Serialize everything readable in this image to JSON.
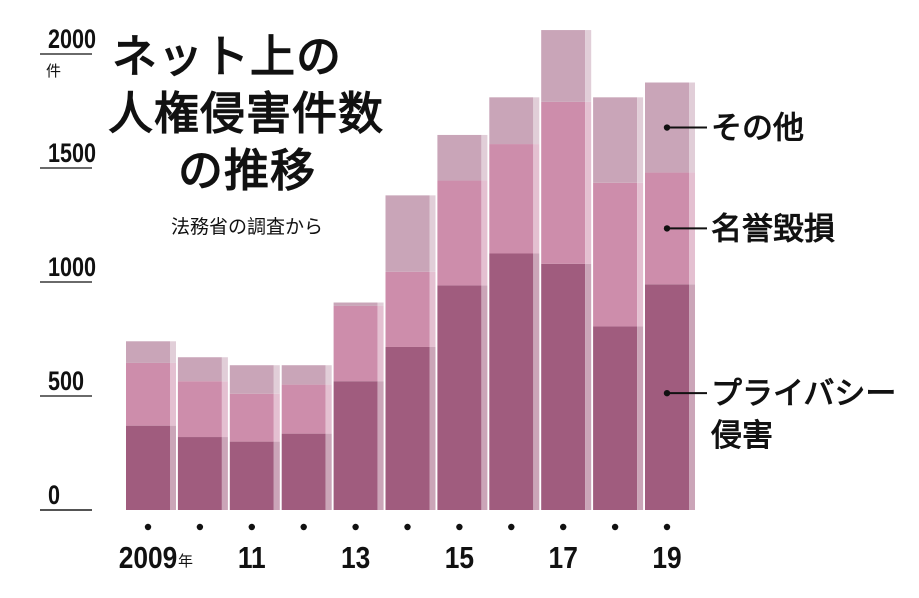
{
  "chart_data": {
    "type": "bar",
    "stacked": true,
    "title_lines": [
      "ネット上の",
      "人権侵害件数",
      "の推移"
    ],
    "subtitle": "法務省の調査から",
    "y_unit": "件",
    "x_unit": "年",
    "ylim": [
      0,
      2000
    ],
    "y_ticks": [
      "0",
      "500",
      "1000",
      "1500",
      "2000"
    ],
    "categories": [
      "2009",
      "2010",
      "2011",
      "2012",
      "2013",
      "2014",
      "2015",
      "2016",
      "2017",
      "2018",
      "2019"
    ],
    "x_tick_labels": [
      "2009",
      "",
      "11",
      "",
      "13",
      "",
      "15",
      "",
      "17",
      "",
      "19"
    ],
    "series": [
      {
        "name": "プライバシー侵害",
        "values": [
          370,
          320,
          300,
          335,
          565,
          715,
          985,
          1125,
          1080,
          805,
          990
        ]
      },
      {
        "name": "名誉毀損",
        "values": [
          275,
          245,
          210,
          215,
          330,
          330,
          460,
          480,
          710,
          630,
          490
        ]
      },
      {
        "name": "その他",
        "values": [
          95,
          105,
          125,
          85,
          15,
          335,
          200,
          205,
          315,
          375,
          395
        ]
      }
    ],
    "colors": [
      "#a05c7e",
      "#cd8dab",
      "#c9a5b8"
    ],
    "legend_labels": [
      "その他",
      "名誉毀損",
      "プライバシー",
      "侵害"
    ],
    "legend_placement": "right"
  }
}
